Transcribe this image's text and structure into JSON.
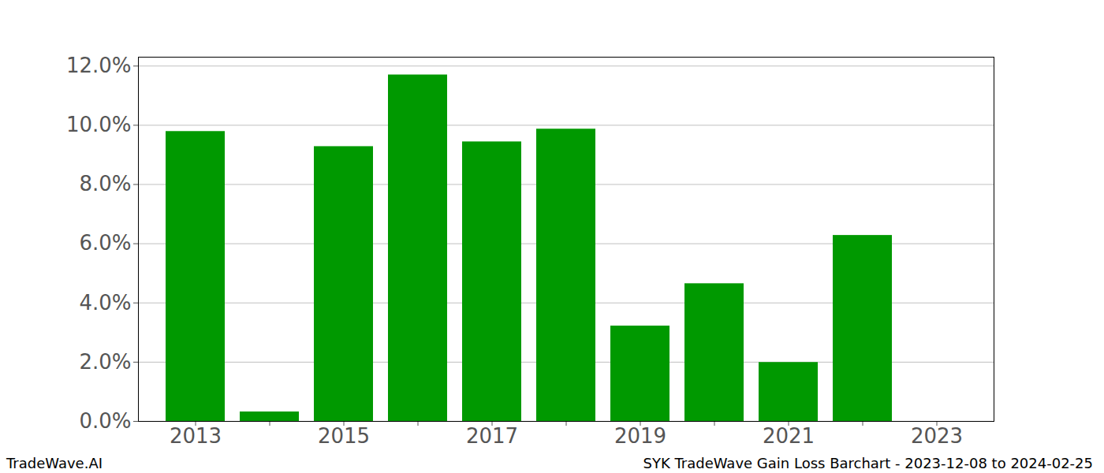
{
  "chart_data": {
    "type": "bar",
    "title": "SYK TradeWave Gain Loss Barchart - 2023-12-08 to 2024-02-25",
    "source": "TradeWave.AI",
    "categories": [
      "2013",
      null,
      "2015",
      null,
      "2017",
      null,
      "2019",
      null,
      "2021",
      null,
      "2023"
    ],
    "values": [
      9.79,
      0.32,
      9.28,
      11.7,
      9.44,
      9.87,
      3.22,
      4.65,
      1.99,
      6.28,
      null
    ],
    "color": "#009900",
    "ylim": [
      0,
      12.3
    ],
    "yticks": [
      {
        "value": 0,
        "label": "0.0%"
      },
      {
        "value": 2,
        "label": "2.0%"
      },
      {
        "value": 4,
        "label": "4.0%"
      },
      {
        "value": 6,
        "label": "6.0%"
      },
      {
        "value": 8,
        "label": "8.0%"
      },
      {
        "value": 10,
        "label": "10.0%"
      },
      {
        "value": 12,
        "label": "12.0%"
      }
    ],
    "grid": true
  }
}
